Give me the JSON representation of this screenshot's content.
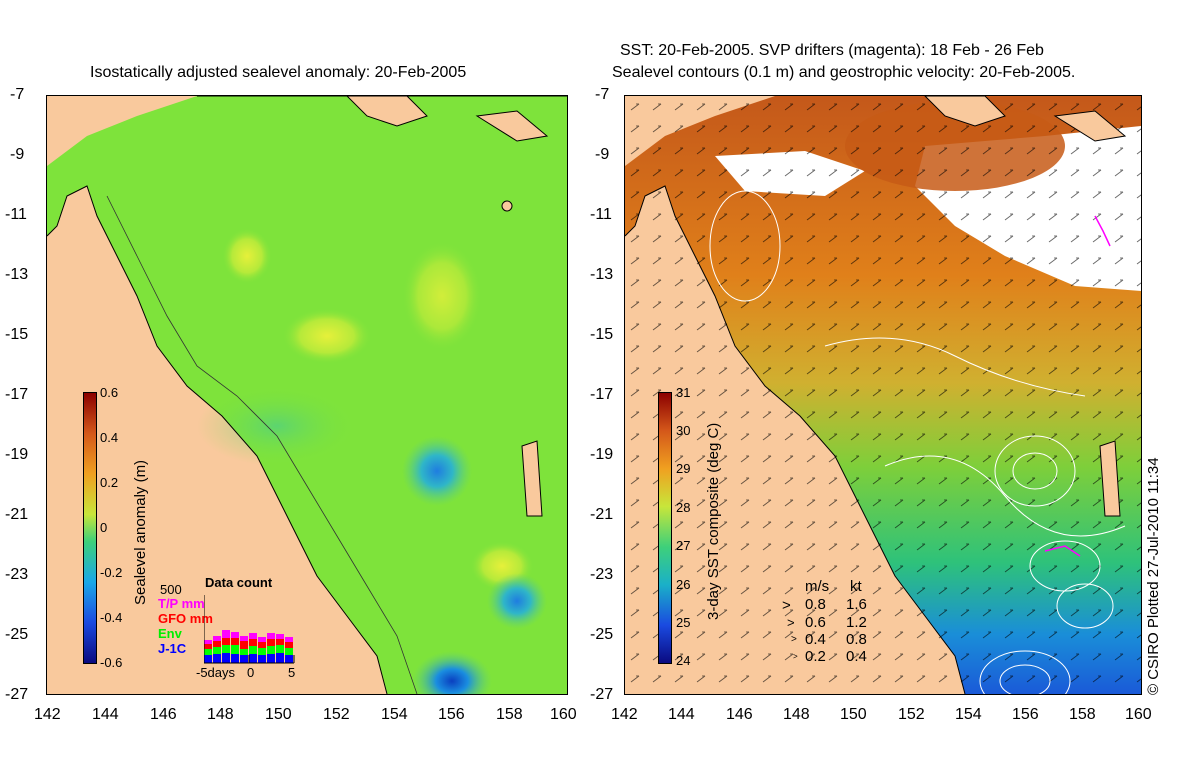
{
  "left_panel": {
    "title": "Isostatically adjusted sealevel anomaly: 20-Feb-2005",
    "colorbar": {
      "label": "Sealevel anomaly (m)",
      "ticks": [
        "0.6",
        "0.4",
        "0.2",
        "0",
        "-0.2",
        "-0.4",
        "-0.6"
      ]
    },
    "data_count": {
      "title": "Data count",
      "ymax": "500",
      "legend": [
        {
          "label": "T/P mm",
          "color": "#ff00ff"
        },
        {
          "label": "GFO mm",
          "color": "#ff0000"
        },
        {
          "label": "Env",
          "color": "#00ff00"
        },
        {
          "label": "J-1C",
          "color": "#0000ff"
        }
      ],
      "xlabel_left": "-5days",
      "xlabel_mid": "0",
      "xlabel_right": "5"
    }
  },
  "right_panel": {
    "title_line1": "SST: 20-Feb-2005. SVP drifters (magenta): 18 Feb - 26 Feb",
    "title_line2": "Sealevel contours (0.1 m) and geostrophic velocity: 20-Feb-2005.",
    "colorbar": {
      "label": "3-day SST composite (deg C)",
      "ticks": [
        "31",
        "30",
        "29",
        "28",
        "27",
        "26",
        "25",
        "24"
      ]
    },
    "velocity_legend": {
      "header_ms": "m/s",
      "header_kt": "kt",
      "rows": [
        {
          "ms": "0.8",
          "kt": "1.6"
        },
        {
          "ms": "0.6",
          "kt": "1.2"
        },
        {
          "ms": "0.4",
          "kt": "0.8"
        },
        {
          "ms": "0.2",
          "kt": "0.4"
        }
      ]
    }
  },
  "axes": {
    "lat_ticks": [
      "-7",
      "-9",
      "-11",
      "-13",
      "-15",
      "-17",
      "-19",
      "-21",
      "-23",
      "-25",
      "-27"
    ],
    "lon_ticks": [
      "142",
      "144",
      "146",
      "148",
      "150",
      "152",
      "154",
      "156",
      "158",
      "160"
    ]
  },
  "credit": "© CSIRO Plotted 27-Jul-2010 11:34",
  "colors": {
    "land": "#f9c99d",
    "sla_background": "#7ee33b",
    "sst_warm": "#e07a10",
    "sst_mid": "#8fd13a",
    "sst_cool": "#1e78d8"
  }
}
